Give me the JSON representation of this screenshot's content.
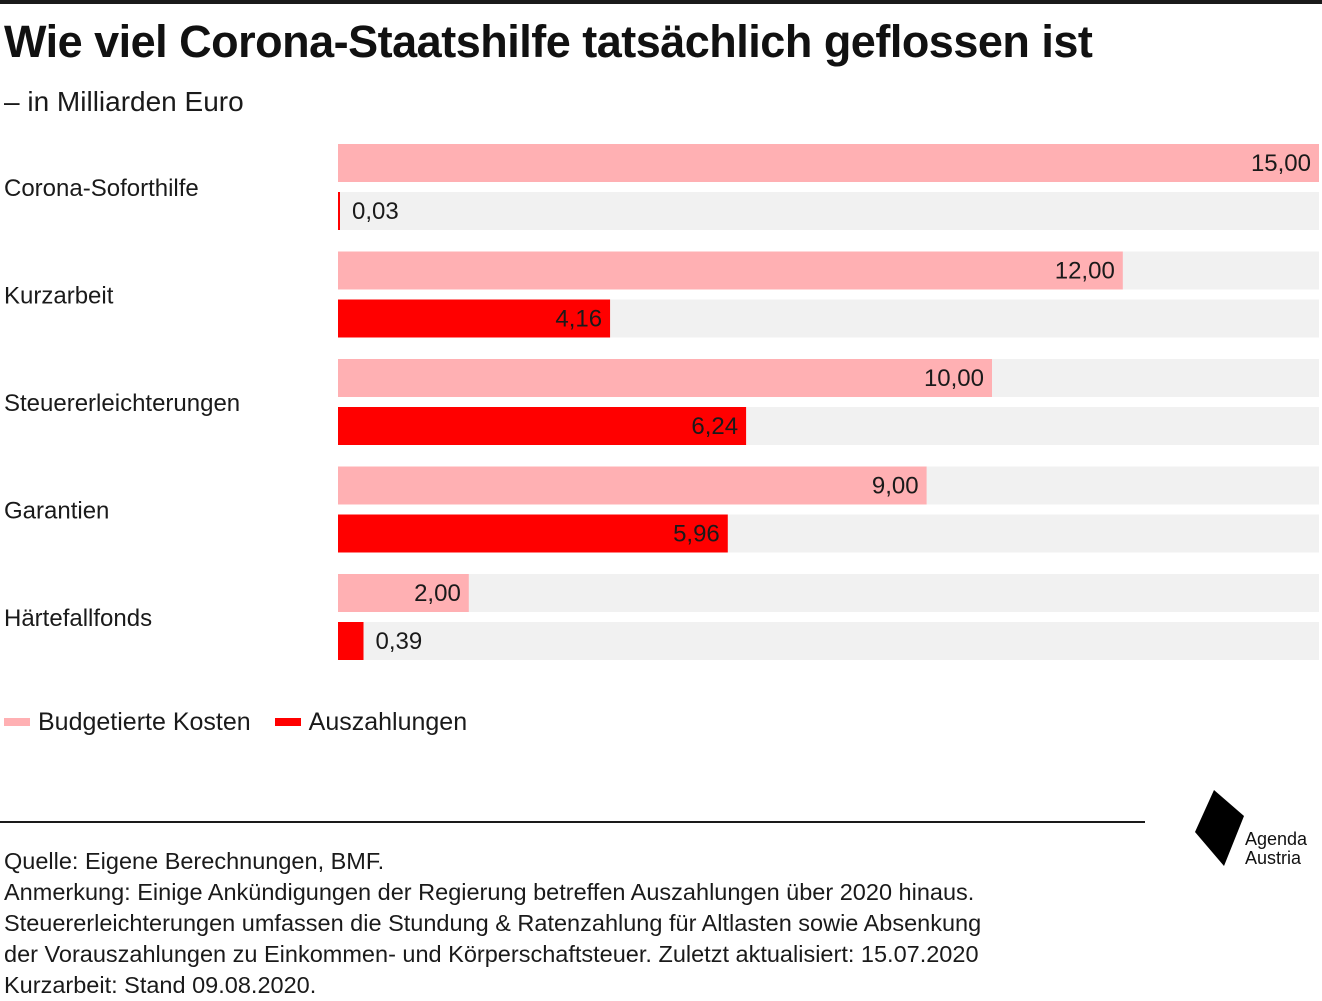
{
  "title": "Wie viel Corona-Staatshilfe tatsächlich geflossen ist",
  "subtitle": "– in Milliarden Euro",
  "colors": {
    "budget": "#ffb0b3",
    "payout": "#ff0000",
    "track": "#f1f1f1",
    "text": "#1a1a1a"
  },
  "chart_data": {
    "type": "bar",
    "orientation": "horizontal",
    "categories": [
      "Corona-Soforthilfe",
      "Kurzarbeit",
      "Steuererleichterungen",
      "Garantien",
      "Härtefallfonds"
    ],
    "series": [
      {
        "name": "Budgetierte Kosten",
        "values": [
          15.0,
          12.0,
          10.0,
          9.0,
          2.0
        ],
        "labels": [
          "15,00",
          "12,00",
          "10,00",
          "9,00",
          "2,00"
        ]
      },
      {
        "name": "Auszahlungen",
        "values": [
          0.03,
          4.16,
          6.24,
          5.96,
          0.39
        ],
        "labels": [
          "0,03",
          "4,16",
          "6,24",
          "5,96",
          "0,39"
        ]
      }
    ],
    "xlim": [
      0,
      15
    ],
    "grid": false,
    "legend_position": "bottom-left"
  },
  "legend": {
    "budget_label": "Budgetierte  Kosten",
    "payout_label": "Auszahlungen"
  },
  "footnotes": {
    "source": "Quelle: Eigene Berechnungen, BMF.",
    "note_1": "Anmerkung: Einige Ankündigungen der Regierung betreffen Auszahlungen über 2020 hinaus.",
    "note_2": "Steuererleichterungen umfassen die Stundung & Ratenzahlung für Altlasten sowie Absenkung",
    "note_3": "der Vorauszahlungen zu Einkommen- und Körperschaftsteuer. Zuletzt aktualisiert: 15.07.2020",
    "note_4": "Kurzarbeit: Stand 09.08.2020."
  },
  "logo": {
    "line1": "Agenda",
    "line2": "Austria"
  }
}
